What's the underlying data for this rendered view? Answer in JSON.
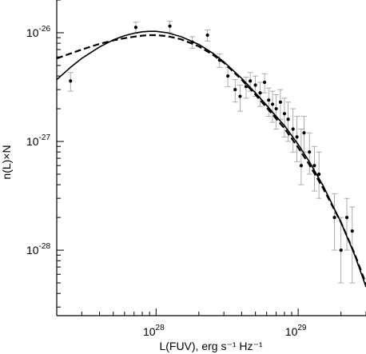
{
  "chart_data": {
    "type": "scatter",
    "xlabel": "L(FUV), erg s⁻¹ Hz⁻¹",
    "ylabel": "n(L)×N",
    "x_scale": "log",
    "y_scale": "log",
    "xlim": [
      2e+27,
      3e+29
    ],
    "ylim": [
      2.5e-29,
      2e-26
    ],
    "grid": false,
    "x_ticks": [
      {
        "value": 1e+28,
        "mantissa": "10",
        "exponent": "28"
      },
      {
        "value": 1e+29,
        "mantissa": "10",
        "exponent": "29"
      }
    ],
    "y_ticks": [
      {
        "value": 1e-28,
        "mantissa": "10",
        "exponent": "-28"
      },
      {
        "value": 1e-27,
        "mantissa": "10",
        "exponent": "-27"
      },
      {
        "value": 1e-26,
        "mantissa": "10",
        "exponent": "-26"
      }
    ],
    "series": [
      {
        "style": "points-with-errorbars",
        "color": "#000000",
        "points": [
          {
            "x": 2.5e+27,
            "y": 3.6e-27,
            "lo": 2.9e-27,
            "hi": 4.3e-27
          },
          {
            "x": 7.2e+27,
            "y": 1.12e-26,
            "lo": 9.9e-27,
            "hi": 1.25e-26
          },
          {
            "x": 1.25e+28,
            "y": 1.15e-26,
            "lo": 1e-26,
            "hi": 1.28e-26
          },
          {
            "x": 1.8e+28,
            "y": 8.2e-27,
            "lo": 7.2e-27,
            "hi": 9.2e-27
          },
          {
            "x": 2.3e+28,
            "y": 9.5e-27,
            "lo": 8.4e-27,
            "hi": 1.06e-26
          },
          {
            "x": 2.8e+28,
            "y": 5.6e-27,
            "lo": 4.8e-27,
            "hi": 6.4e-27
          },
          {
            "x": 3.2e+28,
            "y": 4e-27,
            "lo": 3.2e-27,
            "hi": 4.8e-27
          },
          {
            "x": 3.6e+28,
            "y": 3e-27,
            "lo": 2.3e-27,
            "hi": 3.7e-27
          },
          {
            "x": 3.9e+28,
            "y": 2.6e-27,
            "lo": 1.9e-27,
            "hi": 3.3e-27
          },
          {
            "x": 4.3e+28,
            "y": 3.2e-27,
            "lo": 2.5e-27,
            "hi": 3.9e-27
          },
          {
            "x": 4.6e+28,
            "y": 3.6e-27,
            "lo": 2.9e-27,
            "hi": 4.3e-27
          },
          {
            "x": 5e+28,
            "y": 3.3e-27,
            "lo": 2.6e-27,
            "hi": 4e-27
          },
          {
            "x": 5.4e+28,
            "y": 2.8e-27,
            "lo": 2.1e-27,
            "hi": 3.5e-27
          },
          {
            "x": 5.8e+28,
            "y": 3.5e-27,
            "lo": 2.8e-27,
            "hi": 4.2e-27
          },
          {
            "x": 6.2e+28,
            "y": 2.4e-27,
            "lo": 1.7e-27,
            "hi": 3.1e-27
          },
          {
            "x": 6.6e+28,
            "y": 2.2e-27,
            "lo": 1.5e-27,
            "hi": 2.9e-27
          },
          {
            "x": 7e+28,
            "y": 2e-27,
            "lo": 1.3e-27,
            "hi": 2.7e-27
          },
          {
            "x": 7.5e+28,
            "y": 2.3e-27,
            "lo": 1.6e-27,
            "hi": 3e-27
          },
          {
            "x": 8e+28,
            "y": 1.8e-27,
            "lo": 1.1e-27,
            "hi": 2.5e-27
          },
          {
            "x": 8.5e+28,
            "y": 1.6e-27,
            "lo": 1e-27,
            "hi": 2.3e-27
          },
          {
            "x": 9.2e+28,
            "y": 1.3e-27,
            "lo": 8e-28,
            "hi": 2e-27
          },
          {
            "x": 9.8e+28,
            "y": 1.1e-27,
            "lo": 6.5e-28,
            "hi": 1.7e-27
          },
          {
            "x": 1.05e+29,
            "y": 6e-28,
            "lo": 4e-28,
            "hi": 1.3e-27
          },
          {
            "x": 1.1e+29,
            "y": 1.2e-27,
            "lo": 8e-28,
            "hi": 1.7e-27
          },
          {
            "x": 1.2e+29,
            "y": 8e-28,
            "lo": 5e-28,
            "hi": 1.2e-27
          },
          {
            "x": 1.3e+29,
            "y": 6e-28,
            "lo": 3.5e-28,
            "hi": 9e-28
          },
          {
            "x": 1.4e+29,
            "y": 5e-28,
            "lo": 3e-28,
            "hi": 8e-28
          },
          {
            "x": 1.8e+29,
            "y": 2e-28,
            "lo": 1e-28,
            "hi": 3.3e-28
          },
          {
            "x": 2e+29,
            "y": 1e-28,
            "lo": 5e-29,
            "hi": 2e-28
          },
          {
            "x": 2.2e+29,
            "y": 2e-28,
            "lo": 1e-28,
            "hi": 3e-28
          },
          {
            "x": 2.4e+29,
            "y": 1.5e-28,
            "lo": 5e-29,
            "hi": 2.5e-28
          }
        ]
      },
      {
        "style": "solid-line",
        "color": "#000000",
        "x": [
          2e+27,
          2.5e+27,
          3e+27,
          4e+27,
          5e+27,
          6e+27,
          7e+27,
          8e+27,
          9e+27,
          1e+28,
          1.2e+28,
          1.5e+28,
          2e+28,
          2.5e+28,
          3e+28,
          4e+28,
          5e+28,
          6e+28,
          7e+28,
          8e+28,
          1e+29,
          1.2e+29,
          1.5e+29,
          2e+29,
          2.5e+29,
          3e+29
        ],
        "y": [
          3.7e-27,
          4.8e-27,
          5.8e-27,
          7.4e-27,
          8.6e-27,
          9.4e-27,
          9.9e-27,
          1.02e-26,
          1.03e-26,
          1.03e-26,
          1e-26,
          9.2e-27,
          7.8e-27,
          6.5e-27,
          5.4e-27,
          3.8e-27,
          2.8e-27,
          2.15e-27,
          1.7e-27,
          1.4e-27,
          9.4e-28,
          6.5e-28,
          3.9e-28,
          1.8e-28,
          9e-29,
          4.6e-29
        ]
      },
      {
        "style": "dashed-line",
        "color": "#000000",
        "x": [
          2e+27,
          3e+27,
          4e+27,
          5e+27,
          6e+27,
          7e+27,
          8e+27,
          9e+27,
          1e+28,
          1.2e+28,
          1.5e+28,
          2e+28,
          2.5e+28,
          3e+28,
          4e+28,
          5e+28,
          6e+28,
          7e+28,
          8e+28,
          1e+29,
          1.2e+29,
          1.5e+29,
          2e+29,
          2.5e+29,
          3e+29
        ],
        "y": [
          5.8e-27,
          7e-27,
          7.9e-27,
          8.5e-27,
          8.9e-27,
          9.2e-27,
          9.4e-27,
          9.5e-27,
          9.5e-27,
          9.3e-27,
          8.7e-27,
          7.5e-27,
          6.3e-27,
          5.3e-27,
          3.7e-27,
          2.7e-27,
          2.05e-27,
          1.62e-27,
          1.32e-27,
          8.8e-28,
          6.1e-28,
          3.7e-28,
          1.8e-28,
          9.2e-29,
          4.9e-29
        ]
      }
    ]
  }
}
